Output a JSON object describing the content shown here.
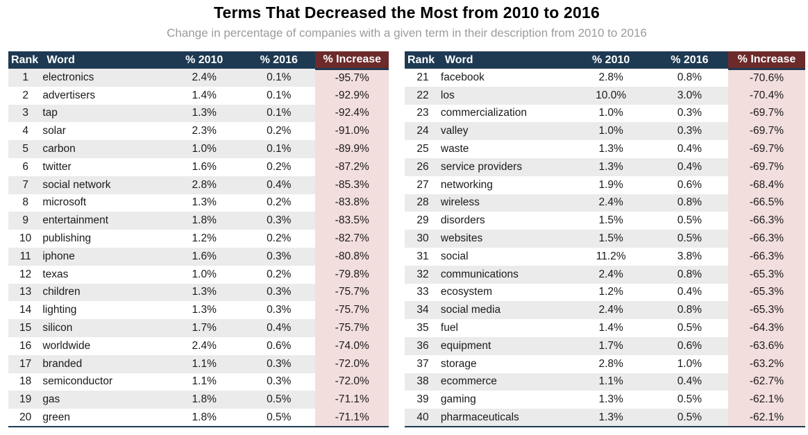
{
  "title": "Terms That Decreased the Most from 2010 to 2016",
  "subtitle": "Change in percentage of companies with a given term in their description from 2010 to 2016",
  "colors": {
    "header_bg": "#1e3a52",
    "header_text": "#ffffff",
    "increase_header_bg": "#6d2a2a",
    "increase_cell_bg": "#f2dedd",
    "row_stripe_bg": "#ebebeb",
    "row_bg": "#ffffff",
    "subtitle_text": "#9b9b9b",
    "title_text": "#000000"
  },
  "chart_data": {
    "type": "table",
    "title": "Terms That Decreased the Most from 2010 to 2016",
    "subtitle": "Change in percentage of companies with a given term in their description from 2010 to 2016",
    "columns": [
      "Rank",
      "Word",
      "% 2010",
      "% 2016",
      "% Increase"
    ],
    "layout": "two side-by-side tables; left table ranks 1-20, right table ranks 21-40",
    "rows": [
      [
        1,
        "electronics",
        "2.4%",
        "0.1%",
        "-95.7%"
      ],
      [
        2,
        "advertisers",
        "1.4%",
        "0.1%",
        "-92.9%"
      ],
      [
        3,
        "tap",
        "1.3%",
        "0.1%",
        "-92.4%"
      ],
      [
        4,
        "solar",
        "2.3%",
        "0.2%",
        "-91.0%"
      ],
      [
        5,
        "carbon",
        "1.0%",
        "0.1%",
        "-89.9%"
      ],
      [
        6,
        "twitter",
        "1.6%",
        "0.2%",
        "-87.2%"
      ],
      [
        7,
        "social network",
        "2.8%",
        "0.4%",
        "-85.3%"
      ],
      [
        8,
        "microsoft",
        "1.3%",
        "0.2%",
        "-83.8%"
      ],
      [
        9,
        "entertainment",
        "1.8%",
        "0.3%",
        "-83.5%"
      ],
      [
        10,
        "publishing",
        "1.2%",
        "0.2%",
        "-82.7%"
      ],
      [
        11,
        "iphone",
        "1.6%",
        "0.3%",
        "-80.8%"
      ],
      [
        12,
        "texas",
        "1.0%",
        "0.2%",
        "-79.8%"
      ],
      [
        13,
        "children",
        "1.3%",
        "0.3%",
        "-75.7%"
      ],
      [
        14,
        "lighting",
        "1.3%",
        "0.3%",
        "-75.7%"
      ],
      [
        15,
        "silicon",
        "1.7%",
        "0.4%",
        "-75.7%"
      ],
      [
        16,
        "worldwide",
        "2.4%",
        "0.6%",
        "-74.0%"
      ],
      [
        17,
        "branded",
        "1.1%",
        "0.3%",
        "-72.0%"
      ],
      [
        18,
        "semiconductor",
        "1.1%",
        "0.3%",
        "-72.0%"
      ],
      [
        19,
        "gas",
        "1.8%",
        "0.5%",
        "-71.1%"
      ],
      [
        20,
        "green",
        "1.8%",
        "0.5%",
        "-71.1%"
      ],
      [
        21,
        "facebook",
        "2.8%",
        "0.8%",
        "-70.6%"
      ],
      [
        22,
        "los",
        "10.0%",
        "3.0%",
        "-70.4%"
      ],
      [
        23,
        "commercialization",
        "1.0%",
        "0.3%",
        "-69.7%"
      ],
      [
        24,
        "valley",
        "1.0%",
        "0.3%",
        "-69.7%"
      ],
      [
        25,
        "waste",
        "1.3%",
        "0.4%",
        "-69.7%"
      ],
      [
        26,
        "service providers",
        "1.3%",
        "0.4%",
        "-69.7%"
      ],
      [
        27,
        "networking",
        "1.9%",
        "0.6%",
        "-68.4%"
      ],
      [
        28,
        "wireless",
        "2.4%",
        "0.8%",
        "-66.5%"
      ],
      [
        29,
        "disorders",
        "1.5%",
        "0.5%",
        "-66.3%"
      ],
      [
        30,
        "websites",
        "1.5%",
        "0.5%",
        "-66.3%"
      ],
      [
        31,
        "social",
        "11.2%",
        "3.8%",
        "-66.3%"
      ],
      [
        32,
        "communications",
        "2.4%",
        "0.8%",
        "-65.3%"
      ],
      [
        33,
        "ecosystem",
        "1.2%",
        "0.4%",
        "-65.3%"
      ],
      [
        34,
        "social media",
        "2.4%",
        "0.8%",
        "-65.3%"
      ],
      [
        35,
        "fuel",
        "1.4%",
        "0.5%",
        "-64.3%"
      ],
      [
        36,
        "equipment",
        "1.7%",
        "0.6%",
        "-63.6%"
      ],
      [
        37,
        "storage",
        "2.8%",
        "1.0%",
        "-63.2%"
      ],
      [
        38,
        "ecommerce",
        "1.1%",
        "0.4%",
        "-62.7%"
      ],
      [
        39,
        "gaming",
        "1.3%",
        "0.5%",
        "-62.1%"
      ],
      [
        40,
        "pharmaceuticals",
        "1.3%",
        "0.5%",
        "-62.1%"
      ]
    ]
  }
}
